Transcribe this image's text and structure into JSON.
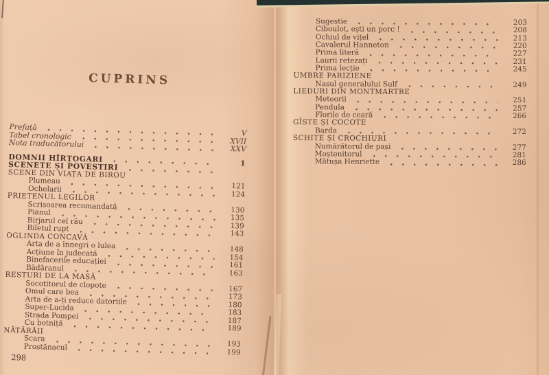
{
  "colors": {
    "paper": "#ecc6a8",
    "ink": "#563c2d",
    "scanner_background": "#233230"
  },
  "left_page": {
    "title": "CUPRINS",
    "folio": "298",
    "rows": [
      {
        "label": "Prefață",
        "page": "V",
        "type": "front",
        "leader": true
      },
      {
        "label": "Tabel cronologic",
        "page": "XVII",
        "type": "front",
        "leader": true
      },
      {
        "label": "Nota traducătorului",
        "page": "XXV",
        "type": "front",
        "leader": true
      },
      {
        "label": "DOMNII HÎRȚOGARI",
        "page": "1",
        "type": "part",
        "leader": true,
        "gap": true
      },
      {
        "label": "SCENETE ȘI POVESTIRI",
        "page": "",
        "type": "part",
        "leader": true
      },
      {
        "label": "SCENE DIN VIAȚA DE BIROU",
        "page": "",
        "type": "section",
        "leader": false
      },
      {
        "label": "Plumeau",
        "page": "121",
        "type": "item",
        "leader": true
      },
      {
        "label": "Ochelarii",
        "page": "124",
        "type": "item",
        "leader": true
      },
      {
        "label": "PRIETENUL LEGILOR",
        "page": "",
        "type": "section",
        "leader": false
      },
      {
        "label": "Scrisoarea recomandată",
        "page": "130",
        "type": "item",
        "leader": true
      },
      {
        "label": "Pianul",
        "page": "135",
        "type": "item",
        "leader": true
      },
      {
        "label": "Birjarul cel rău",
        "page": "139",
        "type": "item",
        "leader": true
      },
      {
        "label": "Biletul rupt",
        "page": "143",
        "type": "item",
        "leader": true
      },
      {
        "label": "OGLINDA CONCAVĂ",
        "page": "",
        "type": "section",
        "leader": false
      },
      {
        "label": "Arta de a înnegri o lulea",
        "page": "148",
        "type": "item",
        "leader": true
      },
      {
        "label": "Acțiune în judecată",
        "page": "154",
        "type": "item",
        "leader": true
      },
      {
        "label": "Binefacerile educației",
        "page": "161",
        "type": "item",
        "leader": true
      },
      {
        "label": "Bădăranul",
        "page": "163",
        "type": "item",
        "leader": true
      },
      {
        "label": "RESTURI DE LA MASĂ",
        "page": "",
        "type": "section",
        "leader": false
      },
      {
        "label": "Socotitorul de clopote",
        "page": "167",
        "type": "item",
        "leader": true
      },
      {
        "label": "Omul care bea",
        "page": "173",
        "type": "item",
        "leader": true
      },
      {
        "label": "Arta de a-ți reduce datoriile",
        "page": "180",
        "type": "item",
        "leader": true
      },
      {
        "label": "Super-Lucida",
        "page": "183",
        "type": "item",
        "leader": true
      },
      {
        "label": "Strada Pompei",
        "page": "187",
        "type": "item",
        "leader": true
      },
      {
        "label": "Cu botniță",
        "page": "189",
        "type": "item",
        "leader": true
      },
      {
        "label": "NĂTĂRĂII",
        "page": "",
        "type": "section",
        "leader": false
      },
      {
        "label": "Scara",
        "page": "193",
        "type": "item",
        "leader": true
      },
      {
        "label": "Prostănacul",
        "page": "199",
        "type": "item",
        "leader": true
      }
    ]
  },
  "right_page": {
    "rows": [
      {
        "label": "Sugestie",
        "page": "203",
        "type": "item",
        "leader": true
      },
      {
        "label": "Ciboulot, ești un porc !",
        "page": "208",
        "type": "item",
        "leader": true
      },
      {
        "label": "Ochiul de vițel",
        "page": "213",
        "type": "item",
        "leader": true
      },
      {
        "label": "Cavalerul Hanneton",
        "page": "220",
        "type": "item",
        "leader": true
      },
      {
        "label": "Prima literă",
        "page": "227",
        "type": "item",
        "leader": true
      },
      {
        "label": "Laurii retezați",
        "page": "231",
        "type": "item",
        "leader": true
      },
      {
        "label": "Prima lecție",
        "page": "245",
        "type": "item",
        "leader": true
      },
      {
        "label": "UMBRE PARIZIENE",
        "page": "",
        "type": "section",
        "leader": false
      },
      {
        "label": "Nasul generalului Sulf",
        "page": "249",
        "type": "item",
        "leader": true
      },
      {
        "label": "LIEDURI DIN MONTMARTRE",
        "page": "",
        "type": "section",
        "leader": false
      },
      {
        "label": "Meteorii",
        "page": "251",
        "type": "item",
        "leader": true
      },
      {
        "label": "Pendula",
        "page": "257",
        "type": "item",
        "leader": true
      },
      {
        "label": "Florile de ceară",
        "page": "266",
        "type": "item",
        "leader": true
      },
      {
        "label": "GÎSTE ȘI COCOTE",
        "page": "",
        "type": "section",
        "leader": false
      },
      {
        "label": "Barda",
        "page": "272",
        "type": "item",
        "leader": true
      },
      {
        "label": "SCHIȚE ȘI CROCHIURI",
        "page": "",
        "type": "section",
        "leader": false
      },
      {
        "label": "Numărătorul de pași",
        "page": "277",
        "type": "item",
        "leader": true
      },
      {
        "label": "Moștenitorul",
        "page": "281",
        "type": "item",
        "leader": true
      },
      {
        "label": "Mătușa Henriette",
        "page": "286",
        "type": "item",
        "leader": true
      }
    ]
  }
}
